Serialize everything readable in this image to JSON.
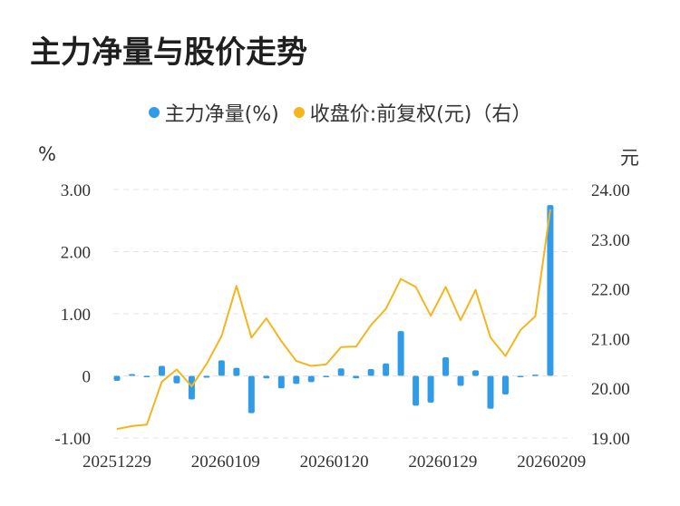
{
  "title": "主力净量与股价走势",
  "legend": {
    "series1": "主力净量(%)",
    "series2": "收盘价:前复权(元)（右）",
    "series1_color": "#2f9be9",
    "series2_color": "#f4b51e"
  },
  "units": {
    "left": "%",
    "right": "元"
  },
  "chart_data": {
    "type": "bar+line",
    "title": "主力净量与股价走势",
    "left_axis": {
      "unit": "%",
      "ylim": [
        -1,
        3
      ],
      "ticks": [
        "3.00",
        "2.00",
        "1.00",
        "0",
        "-1.00"
      ]
    },
    "right_axis": {
      "unit": "元",
      "ylim": [
        19,
        24
      ],
      "ticks": [
        "24.00",
        "23.00",
        "22.00",
        "21.00",
        "20.00",
        "19.00"
      ]
    },
    "x_tick_labels": [
      "20251229",
      "20260109",
      "20260120",
      "20260129",
      "20260209"
    ],
    "grid": true,
    "legend_position": "top",
    "series": [
      {
        "name": "主力净量(%)",
        "kind": "bar",
        "axis": "left",
        "color": "#2f9be9",
        "values": [
          -0.08,
          0.03,
          -0.02,
          0.16,
          -0.12,
          -0.38,
          -0.03,
          0.25,
          0.13,
          -0.6,
          -0.04,
          -0.2,
          -0.13,
          -0.1,
          -0.02,
          0.12,
          -0.04,
          0.11,
          0.2,
          0.72,
          -0.48,
          -0.43,
          0.3,
          -0.16,
          0.09,
          -0.53,
          -0.3,
          -0.01,
          0.02,
          2.75
        ]
      },
      {
        "name": "收盘价:前复权(元)（右）",
        "kind": "line",
        "axis": "right",
        "color": "#f4b51e",
        "values": [
          19.18,
          19.24,
          19.27,
          20.13,
          20.38,
          20.04,
          20.49,
          21.05,
          22.06,
          21.02,
          21.41,
          20.95,
          20.55,
          20.45,
          20.48,
          20.83,
          20.84,
          21.27,
          21.6,
          22.2,
          22.04,
          21.46,
          22.04,
          21.37,
          21.98,
          21.02,
          20.65,
          21.17,
          21.45,
          23.6
        ]
      }
    ]
  }
}
